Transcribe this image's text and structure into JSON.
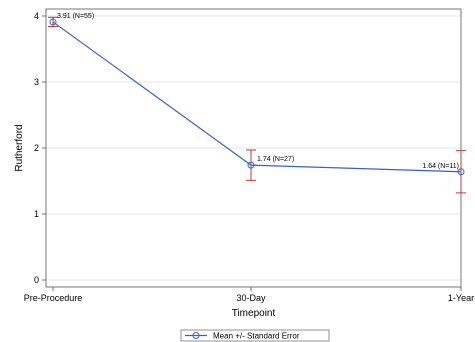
{
  "chart_data": {
    "type": "line",
    "title": "",
    "xlabel": "Timepoint",
    "ylabel": "Rutherford",
    "categories": [
      "Pre-Procedure",
      "30-Day",
      "1-Year"
    ],
    "ylim": [
      0,
      4
    ],
    "yticks": [
      0,
      1,
      2,
      3,
      4
    ],
    "series": [
      {
        "name": "Mean +/- Standard Error",
        "values": [
          3.91,
          1.74,
          1.64
        ],
        "error_low": [
          3.84,
          1.51,
          1.32
        ],
        "error_high": [
          3.98,
          1.97,
          1.96
        ],
        "labels": [
          "3.91 (N=55)",
          "1.74 (N=27)",
          "1.64 (N=11)"
        ]
      }
    ],
    "grid": true,
    "legend": "bottom",
    "colors": {
      "line": "#3a5fcd",
      "marker": "#3a5fcd",
      "error": "#c0392b",
      "grid": "#e6e6e6",
      "axis": "#555555"
    }
  }
}
